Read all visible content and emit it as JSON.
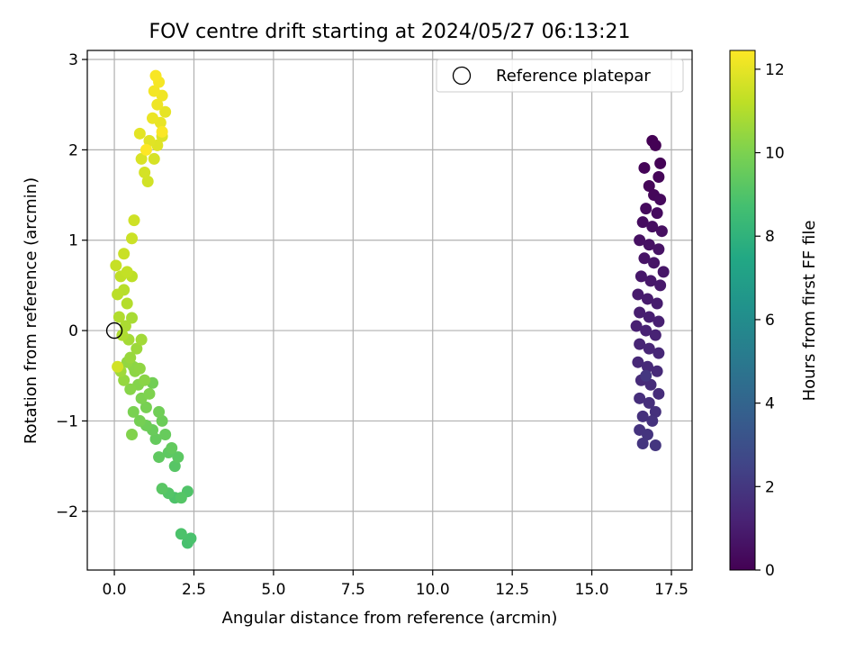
{
  "chart_data": {
    "type": "scatter",
    "title": "FOV centre drift starting at 2024/05/27 06:13:21",
    "xlabel": "Angular distance from reference (arcmin)",
    "ylabel": "Rotation from reference (arcmin)",
    "xlim": [
      -0.85,
      18.15
    ],
    "ylim": [
      -2.65,
      3.1
    ],
    "xticks": [
      0.0,
      2.5,
      5.0,
      7.5,
      10.0,
      12.5,
      15.0,
      17.5
    ],
    "xtick_labels": [
      "0.0",
      "2.5",
      "5.0",
      "7.5",
      "10.0",
      "12.5",
      "15.0",
      "17.5"
    ],
    "yticks": [
      -2,
      -1,
      0,
      1,
      2,
      3
    ],
    "ytick_labels": [
      "−2",
      "−1",
      "0",
      "1",
      "2",
      "3"
    ],
    "grid": true,
    "legend": {
      "position": "top-right",
      "entries": [
        "Reference platepar"
      ]
    },
    "reference_point": {
      "x": 0.0,
      "y": 0.0,
      "label": "Reference platepar"
    },
    "colorbar": {
      "label": "Hours from first FF file",
      "range": [
        0,
        12.45
      ],
      "ticks": [
        0,
        2,
        4,
        6,
        8,
        10,
        12
      ],
      "tick_labels": [
        "0",
        "2",
        "4",
        "6",
        "8",
        "10",
        "12"
      ],
      "colormap": "viridis"
    },
    "series": [
      {
        "color_value_hours": [
          0.0,
          2.0
        ],
        "points": [
          [
            16.9,
            2.1
          ],
          [
            17.0,
            2.05
          ],
          [
            17.15,
            1.85
          ],
          [
            16.65,
            1.8
          ],
          [
            17.1,
            1.7
          ],
          [
            16.8,
            1.6
          ],
          [
            16.95,
            1.5
          ],
          [
            17.15,
            1.45
          ],
          [
            16.7,
            1.35
          ],
          [
            17.05,
            1.3
          ],
          [
            16.6,
            1.2
          ],
          [
            16.9,
            1.15
          ],
          [
            17.2,
            1.1
          ],
          [
            16.5,
            1.0
          ],
          [
            16.8,
            0.95
          ],
          [
            17.1,
            0.9
          ],
          [
            16.65,
            0.8
          ],
          [
            16.95,
            0.75
          ],
          [
            17.25,
            0.65
          ],
          [
            16.55,
            0.6
          ],
          [
            16.85,
            0.55
          ],
          [
            17.15,
            0.5
          ],
          [
            16.45,
            0.4
          ],
          [
            16.75,
            0.35
          ],
          [
            17.05,
            0.3
          ],
          [
            16.5,
            0.2
          ],
          [
            16.8,
            0.15
          ],
          [
            17.1,
            0.1
          ],
          [
            16.4,
            0.05
          ],
          [
            16.7,
            0.0
          ],
          [
            17.0,
            -0.05
          ],
          [
            16.5,
            -0.15
          ],
          [
            16.8,
            -0.2
          ],
          [
            17.1,
            -0.25
          ],
          [
            16.45,
            -0.35
          ],
          [
            16.75,
            -0.4
          ],
          [
            17.05,
            -0.45
          ],
          [
            16.55,
            -0.55
          ],
          [
            16.85,
            -0.6
          ],
          [
            17.1,
            -0.7
          ],
          [
            16.5,
            -0.75
          ],
          [
            16.8,
            -0.8
          ],
          [
            17.0,
            -0.9
          ],
          [
            16.6,
            -0.95
          ],
          [
            16.9,
            -1.0
          ],
          [
            16.5,
            -1.1
          ],
          [
            16.75,
            -1.15
          ],
          [
            16.6,
            -1.25
          ],
          [
            17.0,
            -1.27
          ],
          [
            16.7,
            -0.5
          ]
        ]
      },
      {
        "color_value_hours": [
          8.8,
          10.3
        ],
        "points": [
          [
            2.3,
            -2.35
          ],
          [
            2.4,
            -2.3
          ],
          [
            2.1,
            -2.25
          ],
          [
            1.9,
            -1.85
          ],
          [
            2.3,
            -1.78
          ],
          [
            1.7,
            -1.8
          ],
          [
            2.1,
            -1.85
          ],
          [
            1.9,
            -1.5
          ],
          [
            1.5,
            -1.75
          ],
          [
            2.0,
            -1.4
          ],
          [
            1.7,
            -1.35
          ],
          [
            1.4,
            -1.4
          ],
          [
            1.8,
            -1.3
          ],
          [
            1.3,
            -1.2
          ],
          [
            1.6,
            -1.15
          ],
          [
            1.2,
            -1.1
          ],
          [
            1.5,
            -1.0
          ],
          [
            1.0,
            -1.05
          ],
          [
            1.4,
            -0.9
          ],
          [
            1.2,
            -0.58
          ],
          [
            0.8,
            -1.0
          ],
          [
            1.0,
            -0.85
          ],
          [
            0.6,
            -0.9
          ],
          [
            0.85,
            -0.75
          ],
          [
            1.1,
            -0.7
          ],
          [
            0.55,
            -1.15
          ],
          [
            0.75,
            -0.6
          ],
          [
            0.5,
            -0.65
          ],
          [
            0.95,
            -0.55
          ],
          [
            0.65,
            -0.45
          ]
        ]
      },
      {
        "color_value_hours": [
          10.3,
          11.6
        ],
        "points": [
          [
            0.6,
            -0.4
          ],
          [
            0.8,
            -0.42
          ],
          [
            0.4,
            -0.35
          ],
          [
            0.3,
            -0.55
          ],
          [
            0.5,
            -0.3
          ],
          [
            0.7,
            -0.2
          ],
          [
            0.2,
            -0.45
          ],
          [
            0.85,
            -0.1
          ],
          [
            0.45,
            -0.1
          ],
          [
            0.55,
            0.14
          ],
          [
            0.35,
            0.05
          ],
          [
            0.25,
            -0.05
          ],
          [
            0.15,
            0.15
          ],
          [
            0.4,
            0.3
          ],
          [
            0.3,
            0.45
          ],
          [
            0.1,
            0.4
          ],
          [
            0.55,
            0.6
          ],
          [
            0.2,
            0.6
          ],
          [
            0.4,
            0.65
          ],
          [
            0.05,
            0.72
          ],
          [
            0.3,
            0.85
          ],
          [
            0.55,
            1.02
          ],
          [
            0.62,
            1.22
          ],
          [
            0.1,
            -0.4
          ]
        ]
      },
      {
        "color_value_hours": [
          11.6,
          12.45
        ],
        "points": [
          [
            1.05,
            1.65
          ],
          [
            0.95,
            1.75
          ],
          [
            1.25,
            1.9
          ],
          [
            0.85,
            1.9
          ],
          [
            1.5,
            2.15
          ],
          [
            1.35,
            2.05
          ],
          [
            1.1,
            2.1
          ],
          [
            0.8,
            2.18
          ],
          [
            1.6,
            2.42
          ],
          [
            1.45,
            2.3
          ],
          [
            1.2,
            2.35
          ],
          [
            1.35,
            2.5
          ],
          [
            1.5,
            2.6
          ],
          [
            1.25,
            2.65
          ],
          [
            1.4,
            2.75
          ],
          [
            1.3,
            2.82
          ],
          [
            1.5,
            2.2
          ],
          [
            1.0,
            2.0
          ]
        ]
      }
    ]
  }
}
